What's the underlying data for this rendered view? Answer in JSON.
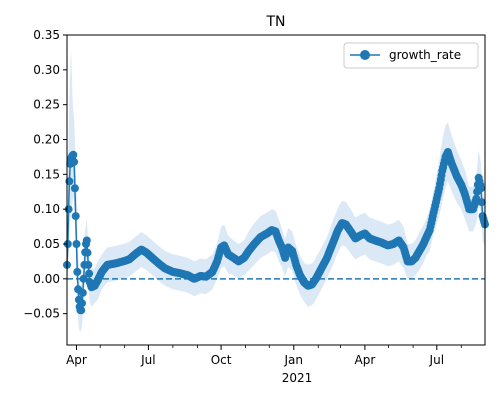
{
  "chart_data": {
    "type": "line",
    "title": "TN",
    "xlabel": "",
    "ylabel": "",
    "x_start": "2020-03-20",
    "x_end": "2021-08-31",
    "ylim": [
      -0.095,
      0.35
    ],
    "y_ticks": [
      -0.05,
      0.0,
      0.05,
      0.1,
      0.15,
      0.2,
      0.25,
      0.3,
      0.35
    ],
    "y_tick_labels": [
      "−0.05",
      "0.00",
      "0.05",
      "0.10",
      "0.15",
      "0.20",
      "0.25",
      "0.30",
      "0.35"
    ],
    "x_major_ticks": [
      {
        "date": "2020-04-01",
        "label": "Apr"
      },
      {
        "date": "2020-07-01",
        "label": "Jul"
      },
      {
        "date": "2020-10-01",
        "label": "Oct"
      },
      {
        "date": "2021-01-01",
        "label": "Jan"
      },
      {
        "date": "2021-04-01",
        "label": "Apr"
      },
      {
        "date": "2021-07-01",
        "label": "Jul"
      }
    ],
    "x_minor_ticks": [
      "2020-05-01",
      "2020-06-01",
      "2020-08-01",
      "2020-09-01",
      "2020-11-01",
      "2020-12-01",
      "2021-02-01",
      "2021-03-01",
      "2021-05-01",
      "2021-06-01",
      "2021-08-01"
    ],
    "x_year_label": "2021",
    "reference_line": {
      "y": 0.0,
      "style": "dashed"
    },
    "legend_position": "upper right",
    "grid": false,
    "series": [
      {
        "name": "growth_rate",
        "color": "#1f77b4",
        "band_color": "#dbe9f6",
        "marker": "circle",
        "points": [
          [
            "2020-03-20",
            0.02,
            -0.02,
            0.06
          ],
          [
            "2020-03-21",
            0.05,
            0.0,
            0.12
          ],
          [
            "2020-03-22",
            0.1,
            0.03,
            0.2
          ],
          [
            "2020-03-23",
            0.14,
            0.06,
            0.26
          ],
          [
            "2020-03-24",
            0.165,
            0.08,
            0.3
          ],
          [
            "2020-03-25",
            0.172,
            0.09,
            0.33
          ],
          [
            "2020-03-26",
            0.175,
            0.1,
            0.3
          ],
          [
            "2020-03-27",
            0.177,
            0.11,
            0.26
          ],
          [
            "2020-03-28",
            0.178,
            0.12,
            0.24
          ],
          [
            "2020-03-29",
            0.168,
            0.11,
            0.23
          ],
          [
            "2020-03-30",
            0.13,
            0.08,
            0.2
          ],
          [
            "2020-03-31",
            0.09,
            0.04,
            0.16
          ],
          [
            "2020-04-01",
            0.05,
            0.0,
            0.12
          ],
          [
            "2020-04-02",
            0.01,
            -0.04,
            0.07
          ],
          [
            "2020-04-03",
            -0.015,
            -0.06,
            0.04
          ],
          [
            "2020-04-04",
            -0.03,
            -0.07,
            0.02
          ],
          [
            "2020-04-05",
            -0.04,
            -0.075,
            0.0
          ],
          [
            "2020-04-06",
            -0.045,
            -0.075,
            -0.01
          ],
          [
            "2020-04-07",
            -0.045,
            -0.075,
            -0.01
          ],
          [
            "2020-04-08",
            -0.035,
            -0.065,
            0.0
          ],
          [
            "2020-04-09",
            -0.02,
            -0.055,
            0.015
          ],
          [
            "2020-04-10",
            0.0,
            -0.035,
            0.035
          ],
          [
            "2020-04-11",
            0.02,
            -0.015,
            0.055
          ],
          [
            "2020-04-12",
            0.038,
            0.005,
            0.07
          ],
          [
            "2020-04-13",
            0.05,
            0.02,
            0.08
          ],
          [
            "2020-04-14",
            0.055,
            0.025,
            0.085
          ],
          [
            "2020-04-16",
            0.02,
            -0.01,
            0.05
          ],
          [
            "2020-04-18",
            -0.005,
            -0.035,
            0.025
          ],
          [
            "2020-04-20",
            -0.012,
            -0.04,
            0.015
          ],
          [
            "2020-04-24",
            -0.01,
            -0.035,
            0.015
          ],
          [
            "2020-04-28",
            -0.002,
            -0.03,
            0.025
          ],
          [
            "2020-05-03",
            0.01,
            -0.015,
            0.035
          ],
          [
            "2020-05-10",
            0.02,
            -0.005,
            0.045
          ],
          [
            "2020-05-20",
            0.022,
            -0.003,
            0.047
          ],
          [
            "2020-05-30",
            0.025,
            0.0,
            0.05
          ],
          [
            "2020-06-07",
            0.028,
            0.003,
            0.053
          ],
          [
            "2020-06-14",
            0.035,
            0.01,
            0.06
          ],
          [
            "2020-06-22",
            0.042,
            0.017,
            0.067
          ],
          [
            "2020-06-28",
            0.038,
            0.013,
            0.063
          ],
          [
            "2020-07-06",
            0.03,
            0.005,
            0.055
          ],
          [
            "2020-07-14",
            0.022,
            -0.003,
            0.047
          ],
          [
            "2020-07-22",
            0.015,
            -0.01,
            0.04
          ],
          [
            "2020-08-01",
            0.01,
            -0.015,
            0.035
          ],
          [
            "2020-08-10",
            0.008,
            -0.017,
            0.033
          ],
          [
            "2020-08-20",
            0.005,
            -0.02,
            0.03
          ],
          [
            "2020-08-28",
            0.0,
            -0.025,
            0.025
          ],
          [
            "2020-09-05",
            0.004,
            -0.021,
            0.029
          ],
          [
            "2020-09-12",
            0.003,
            -0.022,
            0.028
          ],
          [
            "2020-09-20",
            0.01,
            -0.015,
            0.035
          ],
          [
            "2020-09-26",
            0.025,
            0.0,
            0.05
          ],
          [
            "2020-10-01",
            0.045,
            0.015,
            0.075
          ],
          [
            "2020-10-05",
            0.048,
            0.018,
            0.078
          ],
          [
            "2020-10-10",
            0.035,
            0.008,
            0.062
          ],
          [
            "2020-10-17",
            0.03,
            0.005,
            0.055
          ],
          [
            "2020-10-23",
            0.025,
            0.0,
            0.05
          ],
          [
            "2020-10-30",
            0.03,
            0.005,
            0.055
          ],
          [
            "2020-11-05",
            0.04,
            0.012,
            0.068
          ],
          [
            "2020-11-12",
            0.05,
            0.02,
            0.08
          ],
          [
            "2020-11-20",
            0.06,
            0.03,
            0.09
          ],
          [
            "2020-11-28",
            0.065,
            0.035,
            0.095
          ],
          [
            "2020-12-04",
            0.07,
            0.04,
            0.1
          ],
          [
            "2020-12-09",
            0.068,
            0.038,
            0.098
          ],
          [
            "2020-12-13",
            0.055,
            0.025,
            0.085
          ],
          [
            "2020-12-17",
            0.045,
            0.017,
            0.073
          ],
          [
            "2020-12-21",
            0.03,
            0.003,
            0.057
          ],
          [
            "2020-12-25",
            0.045,
            0.017,
            0.073
          ],
          [
            "2020-12-30",
            0.04,
            0.012,
            0.068
          ],
          [
            "2021-01-04",
            0.02,
            -0.008,
            0.048
          ],
          [
            "2021-01-09",
            0.005,
            -0.023,
            0.033
          ],
          [
            "2021-01-14",
            -0.005,
            -0.033,
            0.023
          ],
          [
            "2021-01-19",
            -0.01,
            -0.04,
            0.02
          ],
          [
            "2021-01-24",
            -0.008,
            -0.038,
            0.022
          ],
          [
            "2021-01-29",
            0.0,
            -0.03,
            0.03
          ],
          [
            "2021-02-05",
            0.015,
            -0.015,
            0.045
          ],
          [
            "2021-02-12",
            0.03,
            0.0,
            0.06
          ],
          [
            "2021-02-19",
            0.05,
            0.018,
            0.082
          ],
          [
            "2021-02-26",
            0.07,
            0.038,
            0.102
          ],
          [
            "2021-03-03",
            0.08,
            0.048,
            0.112
          ],
          [
            "2021-03-08",
            0.078,
            0.046,
            0.11
          ],
          [
            "2021-03-14",
            0.068,
            0.036,
            0.1
          ],
          [
            "2021-03-20",
            0.058,
            0.028,
            0.088
          ],
          [
            "2021-03-26",
            0.062,
            0.032,
            0.092
          ],
          [
            "2021-04-01",
            0.065,
            0.035,
            0.095
          ],
          [
            "2021-04-07",
            0.058,
            0.028,
            0.088
          ],
          [
            "2021-04-14",
            0.055,
            0.025,
            0.085
          ],
          [
            "2021-04-22",
            0.052,
            0.022,
            0.082
          ],
          [
            "2021-04-30",
            0.048,
            0.018,
            0.078
          ],
          [
            "2021-05-07",
            0.05,
            0.02,
            0.08
          ],
          [
            "2021-05-14",
            0.055,
            0.025,
            0.085
          ],
          [
            "2021-05-20",
            0.045,
            0.015,
            0.075
          ],
          [
            "2021-05-25",
            0.025,
            0.0,
            0.05
          ],
          [
            "2021-05-30",
            0.025,
            0.0,
            0.05
          ],
          [
            "2021-06-04",
            0.03,
            0.005,
            0.055
          ],
          [
            "2021-06-09",
            0.04,
            0.013,
            0.067
          ],
          [
            "2021-06-14",
            0.05,
            0.023,
            0.077
          ],
          [
            "2021-06-18",
            0.06,
            0.033,
            0.087
          ],
          [
            "2021-06-22",
            0.07,
            0.04,
            0.1
          ],
          [
            "2021-06-26",
            0.09,
            0.06,
            0.12
          ],
          [
            "2021-06-30",
            0.11,
            0.075,
            0.145
          ],
          [
            "2021-07-04",
            0.13,
            0.09,
            0.17
          ],
          [
            "2021-07-08",
            0.155,
            0.11,
            0.2
          ],
          [
            "2021-07-12",
            0.175,
            0.13,
            0.22
          ],
          [
            "2021-07-15",
            0.182,
            0.14,
            0.225
          ],
          [
            "2021-07-20",
            0.165,
            0.125,
            0.205
          ],
          [
            "2021-07-26",
            0.148,
            0.11,
            0.186
          ],
          [
            "2021-08-01",
            0.135,
            0.1,
            0.17
          ],
          [
            "2021-08-06",
            0.12,
            0.085,
            0.155
          ],
          [
            "2021-08-11",
            0.1,
            0.068,
            0.132
          ],
          [
            "2021-08-16",
            0.1,
            0.068,
            0.132
          ],
          [
            "2021-08-20",
            0.115,
            0.08,
            0.15
          ],
          [
            "2021-08-23",
            0.145,
            0.105,
            0.185
          ],
          [
            "2021-08-26",
            0.13,
            0.095,
            0.165
          ],
          [
            "2021-08-28",
            0.09,
            0.055,
            0.125
          ],
          [
            "2021-08-31",
            0.078,
            0.045,
            0.11
          ]
        ]
      }
    ]
  }
}
